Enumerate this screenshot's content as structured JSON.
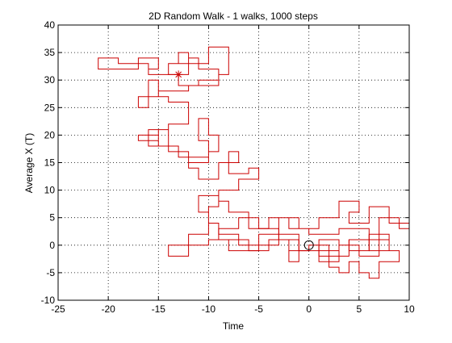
{
  "chart_data": {
    "type": "line",
    "title": "2D Random Walk - 1 walks, 1000 steps",
    "xlabel": "Time",
    "ylabel": "Average X (T)",
    "xlim": [
      -25,
      10
    ],
    "ylim": [
      -10,
      40
    ],
    "xticks": [
      -25,
      -20,
      -15,
      -10,
      -5,
      0,
      5,
      10
    ],
    "yticks": [
      -10,
      -5,
      0,
      5,
      10,
      15,
      20,
      25,
      30,
      35,
      40
    ],
    "grid": true,
    "line_color": "#cc0000",
    "start_marker": {
      "x": 0,
      "y": 0,
      "shape": "circle"
    },
    "end_marker": {
      "x": -13,
      "y": 31,
      "shape": "asterisk"
    },
    "series": [
      {
        "points": [
          [
            0,
            0
          ],
          [
            2,
            0
          ],
          [
            2,
            -2
          ],
          [
            4,
            -2
          ],
          [
            4,
            1
          ],
          [
            6,
            1
          ],
          [
            6,
            -1
          ],
          [
            8,
            -1
          ],
          [
            8,
            2
          ],
          [
            7,
            2
          ],
          [
            7,
            5
          ],
          [
            9,
            5
          ],
          [
            9,
            3
          ],
          [
            10,
            3
          ],
          [
            10,
            4
          ],
          [
            8,
            4
          ],
          [
            8,
            7
          ],
          [
            6,
            7
          ],
          [
            6,
            4
          ],
          [
            4,
            4
          ],
          [
            4,
            6
          ],
          [
            5,
            6
          ],
          [
            5,
            8
          ],
          [
            3,
            8
          ],
          [
            3,
            5
          ],
          [
            1,
            5
          ],
          [
            1,
            3
          ],
          [
            -1,
            3
          ],
          [
            -1,
            5
          ],
          [
            -3,
            5
          ],
          [
            -3,
            2
          ],
          [
            -5,
            2
          ],
          [
            -5,
            0
          ],
          [
            -7,
            0
          ],
          [
            -7,
            2
          ],
          [
            -9,
            2
          ],
          [
            -9,
            4
          ],
          [
            -10,
            4
          ],
          [
            -10,
            7
          ],
          [
            -9,
            7
          ],
          [
            -9,
            9
          ],
          [
            -11,
            9
          ],
          [
            -11,
            6
          ],
          [
            -10,
            6
          ],
          [
            -10,
            2
          ],
          [
            -12,
            2
          ],
          [
            -12,
            -2
          ],
          [
            -14,
            -2
          ],
          [
            -14,
            0
          ],
          [
            -10,
            0
          ],
          [
            -10,
            1
          ],
          [
            -8,
            1
          ],
          [
            -8,
            -1
          ],
          [
            -5,
            -1
          ],
          [
            -5,
            0
          ],
          [
            -3,
            0
          ],
          [
            -3,
            2
          ],
          [
            -1,
            2
          ],
          [
            -1,
            -1
          ],
          [
            -2,
            -1
          ],
          [
            -2,
            -3
          ],
          [
            -1,
            -3
          ],
          [
            -1,
            -1
          ],
          [
            0,
            -1
          ],
          [
            0,
            0
          ],
          [
            1,
            0
          ],
          [
            1,
            -2
          ],
          [
            2,
            -2
          ],
          [
            2,
            -4
          ],
          [
            3,
            -4
          ],
          [
            3,
            -5
          ],
          [
            4,
            -5
          ],
          [
            4,
            -3
          ],
          [
            5,
            -3
          ],
          [
            5,
            -5
          ],
          [
            6,
            -5
          ],
          [
            6,
            -6
          ],
          [
            7,
            -6
          ],
          [
            7,
            -3
          ],
          [
            9,
            -3
          ],
          [
            9,
            -1
          ],
          [
            8,
            -1
          ],
          [
            8,
            1
          ],
          [
            6,
            1
          ],
          [
            6,
            3
          ],
          [
            3,
            3
          ],
          [
            3,
            2
          ],
          [
            0,
            2
          ],
          [
            0,
            3
          ],
          [
            -2,
            3
          ],
          [
            -2,
            5
          ],
          [
            -4,
            5
          ],
          [
            -4,
            3
          ],
          [
            -6,
            3
          ],
          [
            -6,
            6
          ],
          [
            -8,
            6
          ],
          [
            -8,
            8
          ],
          [
            -9,
            8
          ],
          [
            -9,
            10
          ],
          [
            -7,
            10
          ],
          [
            -7,
            12
          ],
          [
            -5,
            12
          ],
          [
            -5,
            14
          ],
          [
            -6,
            14
          ],
          [
            -6,
            13
          ],
          [
            -8,
            13
          ],
          [
            -8,
            17
          ],
          [
            -7,
            17
          ],
          [
            -7,
            15
          ],
          [
            -9,
            15
          ],
          [
            -9,
            12
          ],
          [
            -11,
            12
          ],
          [
            -11,
            14
          ],
          [
            -12,
            14
          ],
          [
            -12,
            16
          ],
          [
            -13,
            16
          ],
          [
            -13,
            18
          ],
          [
            -15,
            18
          ],
          [
            -15,
            20
          ],
          [
            -17,
            20
          ],
          [
            -17,
            19
          ],
          [
            -15,
            19
          ],
          [
            -15,
            21
          ],
          [
            -14,
            21
          ],
          [
            -14,
            17
          ],
          [
            -12,
            17
          ],
          [
            -12,
            15
          ],
          [
            -10,
            15
          ],
          [
            -10,
            19
          ],
          [
            -11,
            19
          ],
          [
            -11,
            23
          ],
          [
            -10,
            23
          ],
          [
            -10,
            20
          ],
          [
            -9,
            20
          ],
          [
            -9,
            17
          ],
          [
            -10,
            17
          ],
          [
            -10,
            16
          ],
          [
            -12,
            16
          ],
          [
            -12,
            17
          ],
          [
            -14,
            17
          ],
          [
            -14,
            18
          ],
          [
            -16,
            18
          ],
          [
            -16,
            21
          ],
          [
            -14,
            21
          ],
          [
            -14,
            22
          ],
          [
            -12,
            22
          ],
          [
            -12,
            26
          ],
          [
            -14,
            26
          ],
          [
            -14,
            27
          ],
          [
            -15,
            27
          ],
          [
            -15,
            30
          ],
          [
            -16,
            30
          ],
          [
            -16,
            25
          ],
          [
            -17,
            25
          ],
          [
            -17,
            27
          ],
          [
            -15,
            27
          ],
          [
            -15,
            28
          ],
          [
            -12,
            28
          ],
          [
            -12,
            29
          ],
          [
            -9,
            29
          ],
          [
            -9,
            31
          ],
          [
            -8,
            31
          ],
          [
            -8,
            36
          ],
          [
            -10,
            36
          ],
          [
            -10,
            33
          ],
          [
            -13,
            33
          ],
          [
            -13,
            35
          ],
          [
            -12,
            35
          ],
          [
            -12,
            31
          ],
          [
            -14,
            31
          ],
          [
            -14,
            33
          ],
          [
            -12,
            33
          ],
          [
            -12,
            34
          ],
          [
            -11,
            34
          ],
          [
            -11,
            32
          ],
          [
            -9,
            32
          ],
          [
            -9,
            30
          ],
          [
            -11,
            30
          ],
          [
            -11,
            29
          ],
          [
            -13,
            29
          ],
          [
            -13,
            31
          ]
        ]
      },
      {
        "points": [
          [
            -13,
            31
          ],
          [
            -16,
            31
          ],
          [
            -16,
            33
          ],
          [
            -19,
            33
          ],
          [
            -19,
            34
          ],
          [
            -21,
            34
          ],
          [
            -21,
            32
          ],
          [
            -17,
            32
          ],
          [
            -17,
            34
          ],
          [
            -15,
            34
          ],
          [
            -15,
            32
          ],
          [
            -16,
            32
          ]
        ]
      },
      {
        "points": [
          [
            4,
            1
          ],
          [
            4,
            -1
          ],
          [
            6,
            -1
          ],
          [
            6,
            2
          ],
          [
            7,
            2
          ],
          [
            7,
            -2
          ],
          [
            5,
            -2
          ],
          [
            5,
            0
          ],
          [
            3,
            0
          ],
          [
            3,
            -3
          ],
          [
            1,
            -3
          ],
          [
            1,
            -1
          ],
          [
            3,
            -1
          ],
          [
            3,
            1
          ],
          [
            1,
            1
          ],
          [
            1,
            -1
          ],
          [
            -1,
            -1
          ],
          [
            -1,
            1
          ],
          [
            -4,
            1
          ],
          [
            -4,
            -1
          ],
          [
            -6,
            -1
          ],
          [
            -6,
            1
          ],
          [
            -9,
            1
          ],
          [
            -9,
            3
          ],
          [
            -7,
            3
          ],
          [
            -7,
            5
          ],
          [
            -5,
            5
          ],
          [
            -5,
            3
          ],
          [
            -3,
            3
          ],
          [
            -3,
            1
          ],
          [
            -2,
            1
          ],
          [
            -2,
            -1
          ]
        ]
      }
    ]
  }
}
